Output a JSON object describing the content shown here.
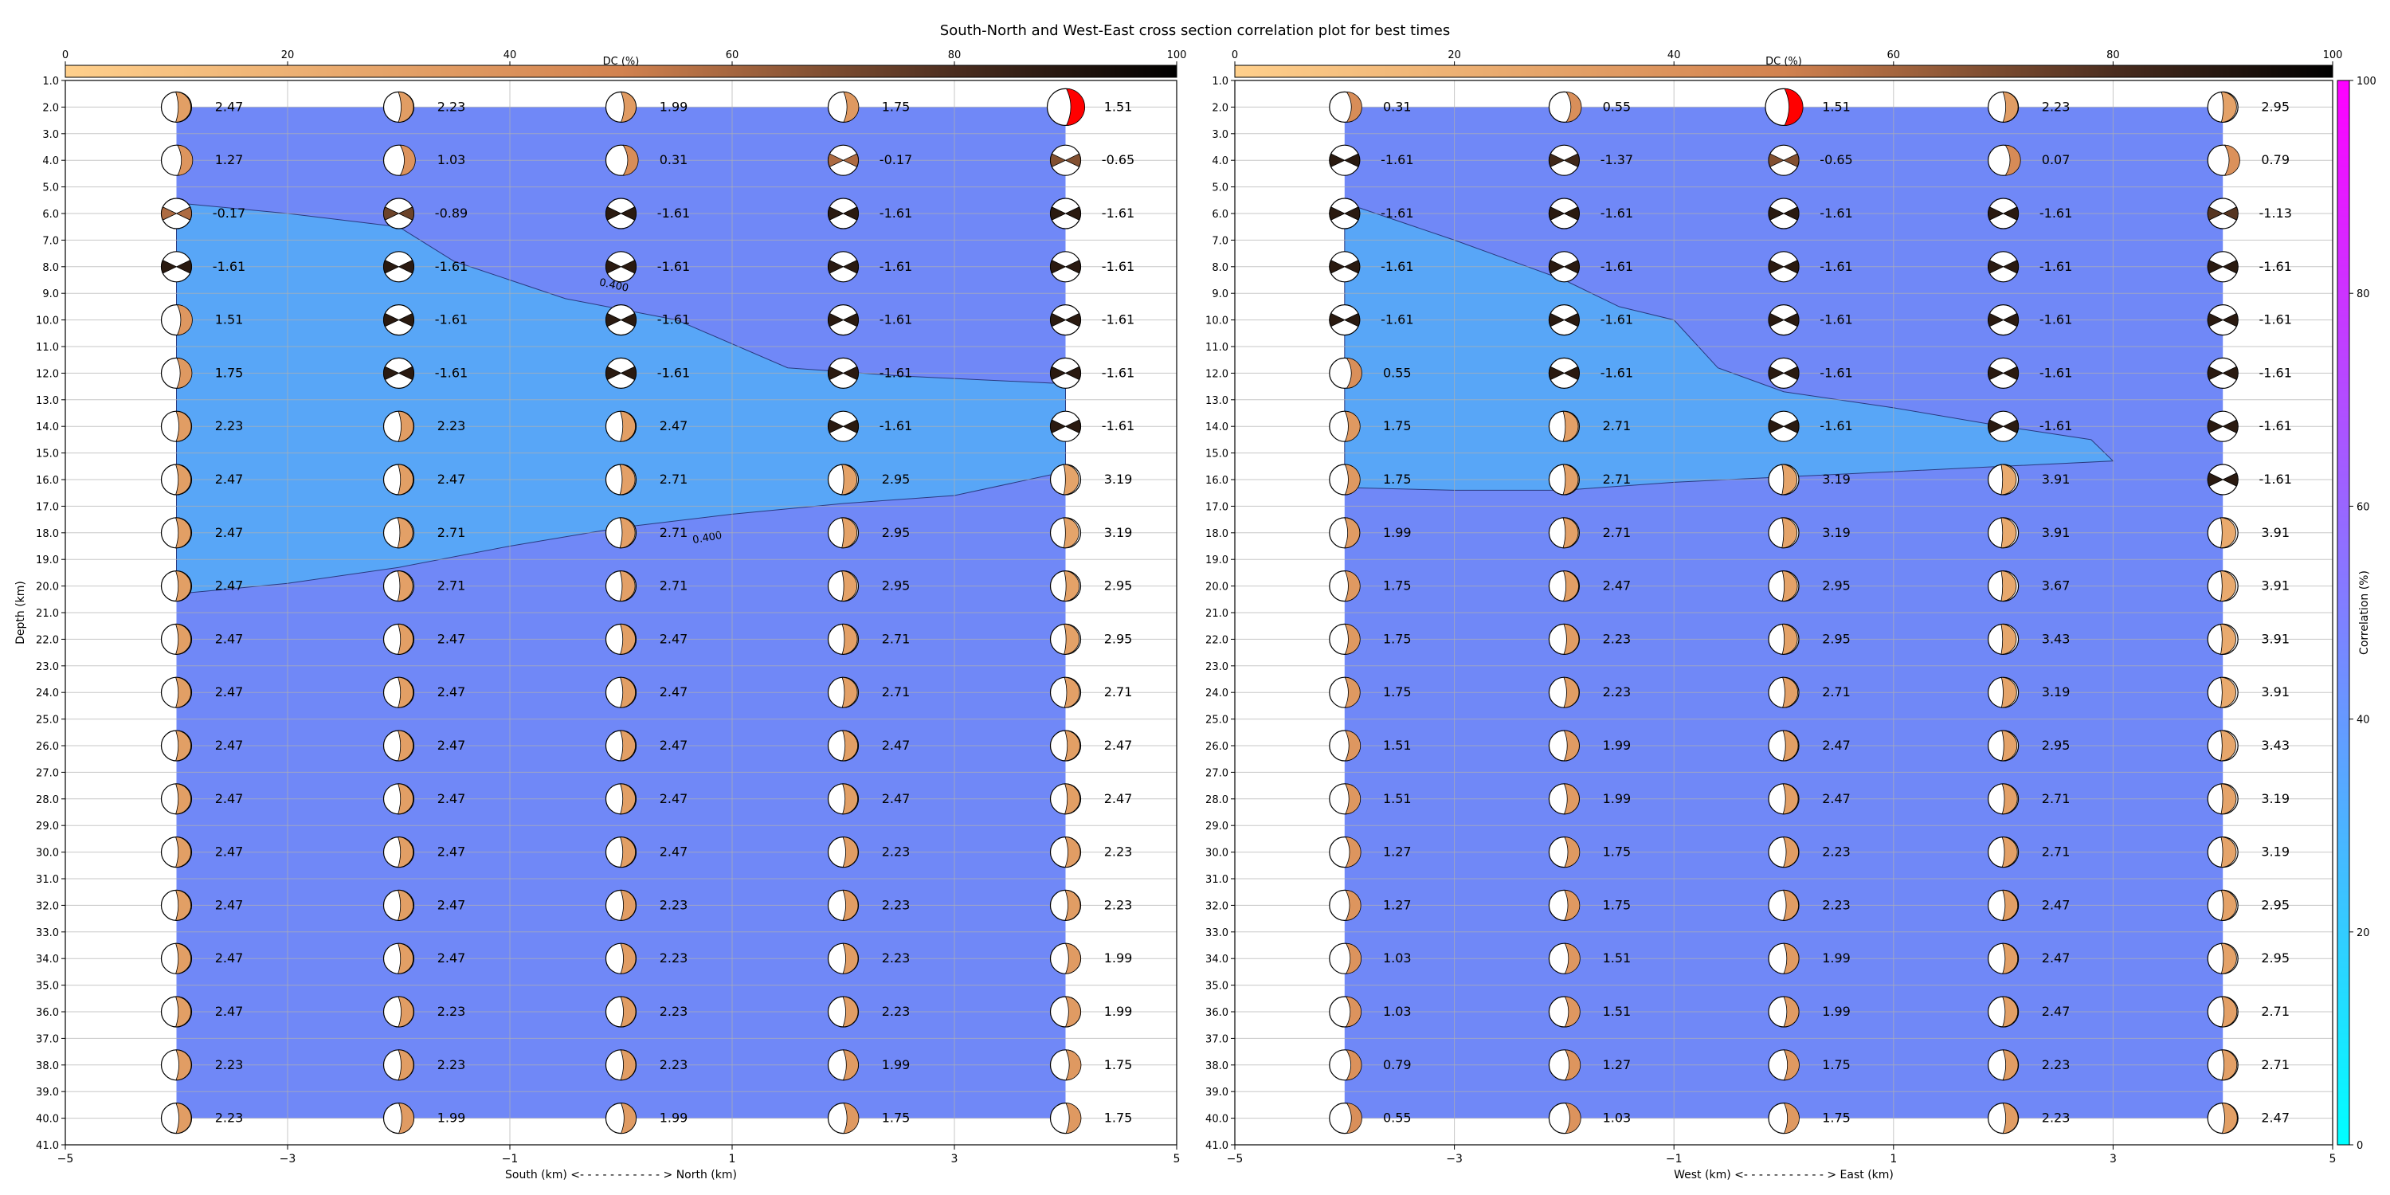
{
  "chart_data": {
    "title": "South-North and West-East cross section correlation plot for best times",
    "type": "heatmap",
    "x_values": [
      -4,
      -2,
      0,
      2,
      4
    ],
    "depths": [
      2,
      4,
      6,
      8,
      10,
      12,
      14,
      16,
      18,
      20,
      22,
      24,
      26,
      28,
      30,
      32,
      34,
      36,
      38,
      40
    ],
    "y_ticks": [
      1.0,
      2.0,
      3.0,
      4.0,
      5.0,
      6.0,
      7.0,
      8.0,
      9.0,
      10.0,
      11.0,
      12.0,
      13.0,
      14.0,
      15.0,
      16.0,
      17.0,
      18.0,
      19.0,
      20.0,
      21.0,
      22.0,
      23.0,
      24.0,
      25.0,
      26.0,
      27.0,
      28.0,
      29.0,
      30.0,
      31.0,
      32.0,
      33.0,
      34.0,
      35.0,
      36.0,
      37.0,
      38.0,
      39.0,
      40.0,
      41.0
    ],
    "dc_colorbar": {
      "label": "DC (%)",
      "ticks": [
        0,
        20,
        40,
        60,
        80,
        100
      ]
    },
    "correlation_colorbar": {
      "label": "Correlation (%)",
      "ticks": [
        0,
        20,
        40,
        60,
        80,
        100
      ],
      "colors": [
        "#00ffff",
        "#ff00ff"
      ]
    },
    "contour_level_label": "0.400",
    "panels": [
      {
        "id": "south-north",
        "xlabel": "South (km) <- - - - - - - - - - - > North (km)",
        "ylabel": "Depth (km)",
        "xlim": [
          -5,
          5
        ],
        "x_ticks": [
          -5,
          -3,
          -1,
          1,
          3,
          5
        ],
        "ylim": [
          41,
          1
        ],
        "contour_upper": [
          [
            -4,
            5.6
          ],
          [
            -3,
            6.0
          ],
          [
            -2,
            6.5
          ],
          [
            -1.5,
            7.8
          ],
          [
            -0.5,
            9.2
          ],
          [
            0.5,
            10.0
          ],
          [
            1.5,
            11.8
          ],
          [
            2.5,
            12.1
          ],
          [
            4,
            12.4
          ]
        ],
        "contour_lower": [
          [
            -4,
            20.3
          ],
          [
            -3,
            19.9
          ],
          [
            -2,
            19.3
          ],
          [
            -1,
            18.5
          ],
          [
            0,
            17.8
          ],
          [
            1,
            17.3
          ],
          [
            2,
            16.9
          ],
          [
            3,
            16.6
          ],
          [
            4,
            15.7
          ]
        ],
        "columns": [
          {
            "x": -4,
            "values": [
              2.47,
              1.27,
              -0.17,
              -1.61,
              1.51,
              1.75,
              2.23,
              2.47,
              2.47,
              2.47,
              2.47,
              2.47,
              2.47,
              2.47,
              2.47,
              2.47,
              2.47,
              2.47,
              2.23,
              2.23
            ]
          },
          {
            "x": -2,
            "values": [
              2.23,
              1.03,
              -0.89,
              -1.61,
              -1.61,
              -1.61,
              2.23,
              2.47,
              2.71,
              2.71,
              2.47,
              2.47,
              2.47,
              2.47,
              2.47,
              2.47,
              2.47,
              2.23,
              2.23,
              1.99
            ]
          },
          {
            "x": 0,
            "values": [
              1.99,
              0.31,
              -1.61,
              -1.61,
              -1.61,
              -1.61,
              2.47,
              2.71,
              2.71,
              2.71,
              2.47,
              2.47,
              2.47,
              2.47,
              2.47,
              2.23,
              2.23,
              2.23,
              2.23,
              1.99
            ]
          },
          {
            "x": 2,
            "values": [
              1.75,
              -0.17,
              -1.61,
              -1.61,
              -1.61,
              -1.61,
              -1.61,
              2.95,
              2.95,
              2.95,
              2.71,
              2.71,
              2.47,
              2.47,
              2.23,
              2.23,
              2.23,
              2.23,
              1.99,
              1.75
            ]
          },
          {
            "x": 4,
            "values": [
              1.51,
              -0.65,
              -1.61,
              -1.61,
              -1.61,
              -1.61,
              -1.61,
              3.19,
              3.19,
              2.95,
              2.95,
              2.71,
              2.47,
              2.47,
              2.23,
              2.23,
              1.99,
              1.99,
              1.75,
              1.75
            ]
          }
        ]
      },
      {
        "id": "west-east",
        "xlabel": "West (km) <- - - - - - - - - - - > East (km)",
        "ylabel": "",
        "xlim": [
          -5,
          5
        ],
        "x_ticks": [
          -5,
          -3,
          -1,
          1,
          3,
          5
        ],
        "ylim": [
          41,
          1
        ],
        "contour_upper": [
          [
            -4,
            5.6
          ],
          [
            -3,
            7.0
          ],
          [
            -2,
            8.5
          ],
          [
            -1.5,
            9.5
          ],
          [
            -1,
            10.0
          ],
          [
            -0.6,
            11.8
          ],
          [
            0,
            12.7
          ],
          [
            1,
            13.3
          ],
          [
            2,
            14.0
          ],
          [
            2.8,
            14.5
          ],
          [
            3,
            15.3
          ]
        ],
        "contour_lower": [
          [
            -4,
            16.3
          ],
          [
            -3,
            16.4
          ],
          [
            -2,
            16.4
          ],
          [
            -1,
            16.1
          ],
          [
            0,
            15.9
          ],
          [
            1,
            15.7
          ],
          [
            2,
            15.5
          ],
          [
            3,
            15.3
          ]
        ],
        "columns": [
          {
            "x": -4,
            "values": [
              0.31,
              -1.61,
              -1.61,
              -1.61,
              -1.61,
              0.55,
              1.75,
              1.75,
              1.99,
              1.75,
              1.75,
              1.75,
              1.51,
              1.51,
              1.27,
              1.27,
              1.03,
              1.03,
              0.79,
              0.55
            ]
          },
          {
            "x": -2,
            "values": [
              0.55,
              -1.37,
              -1.61,
              -1.61,
              -1.61,
              -1.61,
              2.71,
              2.71,
              2.71,
              2.47,
              2.23,
              2.23,
              1.99,
              1.99,
              1.75,
              1.75,
              1.51,
              1.51,
              1.27,
              1.03
            ]
          },
          {
            "x": 0,
            "values": [
              1.51,
              -0.65,
              -1.61,
              -1.61,
              -1.61,
              -1.61,
              -1.61,
              3.19,
              3.19,
              2.95,
              2.95,
              2.71,
              2.47,
              2.47,
              2.23,
              2.23,
              1.99,
              1.99,
              1.75,
              1.75
            ]
          },
          {
            "x": 2,
            "values": [
              2.23,
              0.07,
              -1.61,
              -1.61,
              -1.61,
              -1.61,
              -1.61,
              3.91,
              3.91,
              3.67,
              3.43,
              3.19,
              2.95,
              2.71,
              2.71,
              2.47,
              2.47,
              2.47,
              2.23,
              2.23
            ]
          },
          {
            "x": 4,
            "values": [
              2.95,
              0.79,
              -1.13,
              -1.61,
              -1.61,
              -1.61,
              -1.61,
              -1.61,
              3.91,
              3.91,
              3.91,
              3.91,
              3.43,
              3.19,
              3.19,
              2.95,
              2.95,
              2.71,
              2.71,
              2.47
            ]
          }
        ]
      }
    ]
  }
}
